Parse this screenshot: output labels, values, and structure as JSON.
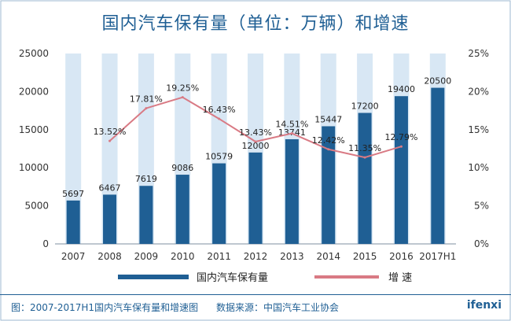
{
  "chart_data": {
    "type": "bar",
    "title": "国内汽车保有量（单位：万辆）和增速",
    "categories": [
      "2007",
      "2008",
      "2009",
      "2010",
      "2011",
      "2012",
      "2013",
      "2014",
      "2015",
      "2016",
      "2017H1"
    ],
    "series": [
      {
        "name": "国内汽车保有量",
        "type": "bar",
        "axis": "left",
        "color": "#1f5f94",
        "values": [
          5697,
          6467,
          7619,
          9086,
          10579,
          12000,
          13741,
          15447,
          17200,
          19400,
          20500
        ]
      },
      {
        "name": "增 速",
        "type": "line",
        "axis": "right",
        "color": "#d97a84",
        "values": [
          null,
          13.52,
          17.81,
          19.25,
          16.43,
          13.43,
          14.51,
          12.42,
          11.35,
          12.79,
          null
        ],
        "labels": [
          "",
          "13.52%",
          "17.81%",
          "19.25%",
          "16.43%",
          "13.43%",
          "14.51%",
          "12.42%",
          "11.35%",
          "12.79%",
          ""
        ]
      }
    ],
    "y_left": {
      "min": 0,
      "max": 25000,
      "ticks": [
        "0",
        "5000",
        "10000",
        "15000",
        "20000",
        "25000"
      ]
    },
    "y_right": {
      "min": 0,
      "max": 25,
      "ticks": [
        "0%",
        "5%",
        "10%",
        "15%",
        "20%",
        "25%"
      ]
    },
    "background_column_color": "#d8e7f4",
    "grid": false,
    "legend_position": "bottom"
  },
  "footer": {
    "caption": "图：2007-2017H1国内汽车保有量和增速图      数据来源：中国汽车工业协会",
    "brand": "ifenxi"
  }
}
